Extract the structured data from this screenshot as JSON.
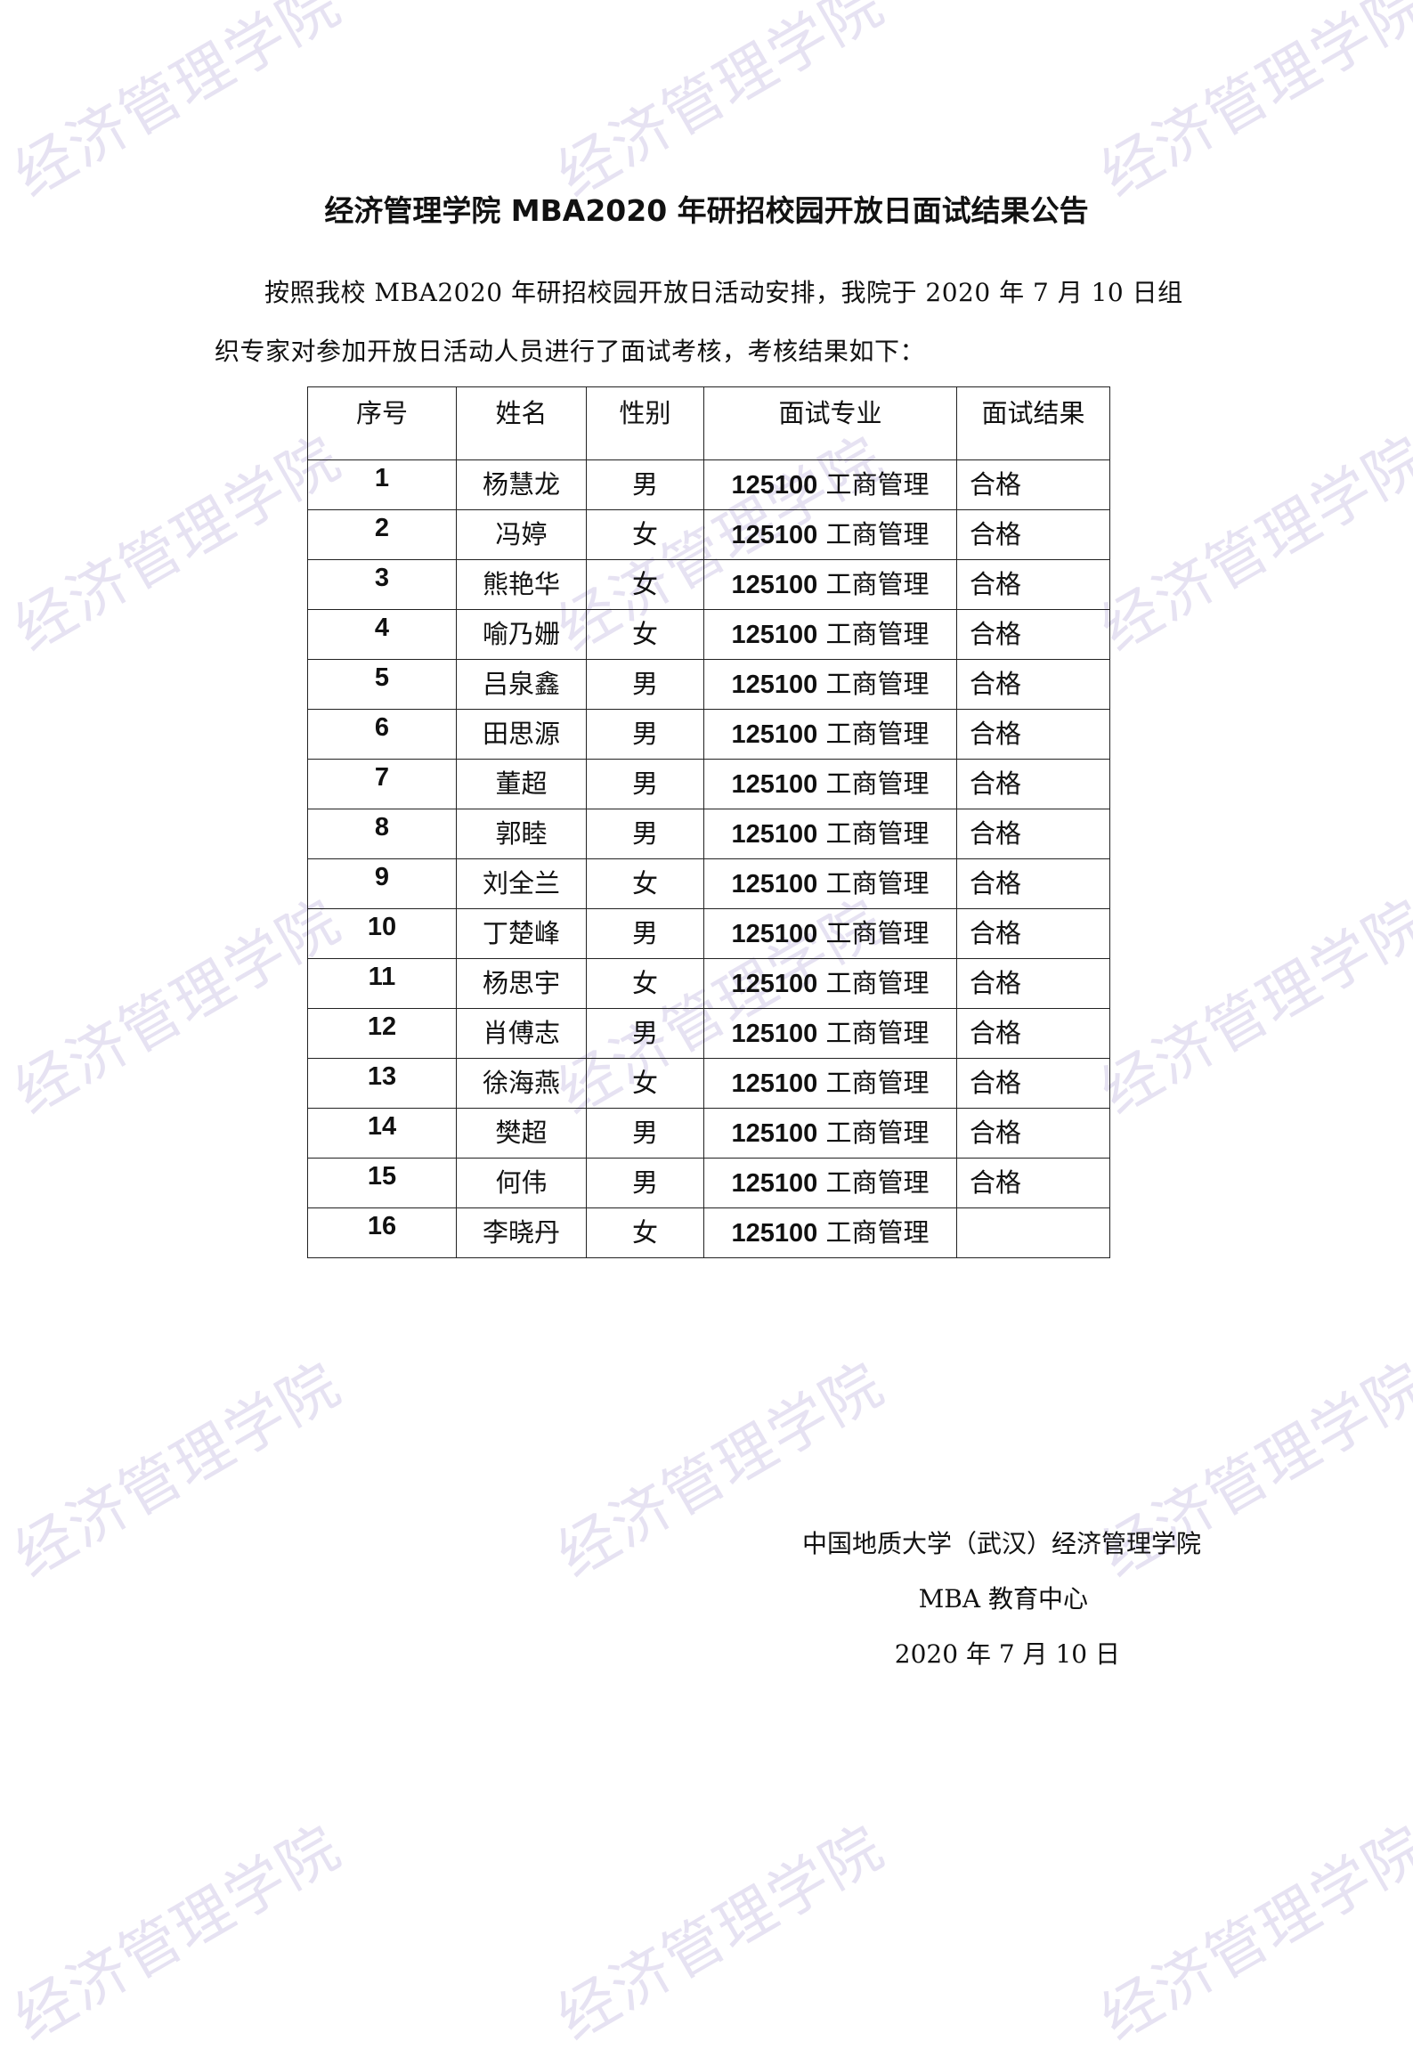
{
  "watermark": "经济管理学院",
  "title": "经济管理学院 MBA2020 年研招校园开放日面试结果公告",
  "intro": "按照我校 MBA2020 年研招校园开放日活动安排，我院于 2020 年 7 月 10 日组织专家对参加开放日活动人员进行了面试考核，考核结果如下：",
  "table": {
    "headers": [
      "序号",
      "姓名",
      "性别",
      "面试专业",
      "面试结果"
    ],
    "rows": [
      {
        "no": "1",
        "name": "杨慧龙",
        "gender": "男",
        "code": "125100",
        "major": "工商管理",
        "result": "合格"
      },
      {
        "no": "2",
        "name": "冯婷",
        "gender": "女",
        "code": "125100",
        "major": "工商管理",
        "result": "合格"
      },
      {
        "no": "3",
        "name": "熊艳华",
        "gender": "女",
        "code": "125100",
        "major": "工商管理",
        "result": "合格"
      },
      {
        "no": "4",
        "name": "喻乃姗",
        "gender": "女",
        "code": "125100",
        "major": "工商管理",
        "result": "合格"
      },
      {
        "no": "5",
        "name": "吕泉鑫",
        "gender": "男",
        "code": "125100",
        "major": "工商管理",
        "result": "合格"
      },
      {
        "no": "6",
        "name": "田思源",
        "gender": "男",
        "code": "125100",
        "major": "工商管理",
        "result": "合格"
      },
      {
        "no": "7",
        "name": "董超",
        "gender": "男",
        "code": "125100",
        "major": "工商管理",
        "result": "合格"
      },
      {
        "no": "8",
        "name": "郭睦",
        "gender": "男",
        "code": "125100",
        "major": "工商管理",
        "result": "合格"
      },
      {
        "no": "9",
        "name": "刘全兰",
        "gender": "女",
        "code": "125100",
        "major": "工商管理",
        "result": "合格"
      },
      {
        "no": "10",
        "name": "丁楚峰",
        "gender": "男",
        "code": "125100",
        "major": "工商管理",
        "result": "合格"
      },
      {
        "no": "11",
        "name": "杨思宇",
        "gender": "女",
        "code": "125100",
        "major": "工商管理",
        "result": "合格"
      },
      {
        "no": "12",
        "name": "肖傅志",
        "gender": "男",
        "code": "125100",
        "major": "工商管理",
        "result": "合格"
      },
      {
        "no": "13",
        "name": "徐海燕",
        "gender": "女",
        "code": "125100",
        "major": "工商管理",
        "result": "合格"
      },
      {
        "no": "14",
        "name": "樊超",
        "gender": "男",
        "code": "125100",
        "major": "工商管理",
        "result": "合格"
      },
      {
        "no": "15",
        "name": "何伟",
        "gender": "男",
        "code": "125100",
        "major": "工商管理",
        "result": "合格"
      },
      {
        "no": "16",
        "name": "李晓丹",
        "gender": "女",
        "code": "125100",
        "major": "工商管理",
        "result": ""
      }
    ]
  },
  "signature": {
    "org": "中国地质大学（武汉）经济管理学院",
    "dept": "MBA 教育中心",
    "date": "2020  年 7  月 10 日"
  }
}
